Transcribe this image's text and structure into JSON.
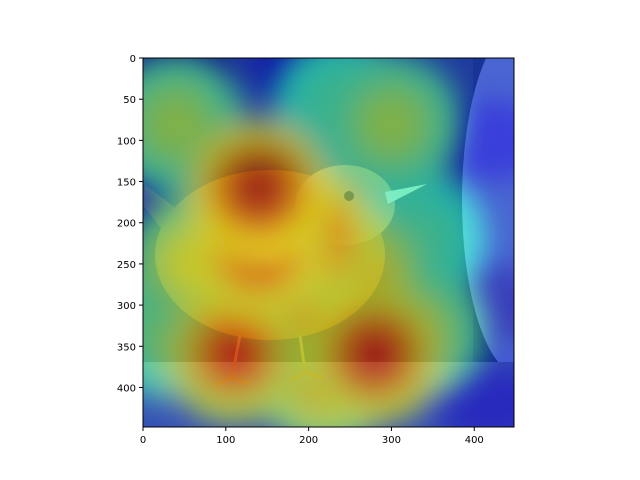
{
  "chart_data": {
    "type": "heatmap",
    "title": "",
    "xlabel": "",
    "ylabel": "",
    "x_range": [
      0,
      448
    ],
    "y_range": [
      448,
      0
    ],
    "x_ticks": [
      0,
      100,
      200,
      300,
      400
    ],
    "y_ticks": [
      0,
      50,
      100,
      150,
      200,
      250,
      300,
      350,
      400
    ],
    "x_tick_labels": [
      "0",
      "100",
      "200",
      "300",
      "400"
    ],
    "y_tick_labels": [
      "0",
      "50",
      "100",
      "150",
      "200",
      "250",
      "300",
      "350",
      "400"
    ],
    "colormap": "jet",
    "background": "photo of a small brown wren perched on a wooden ledge",
    "heat_hotspots": [
      {
        "x": 140,
        "y": 160,
        "level": 0.95
      },
      {
        "x": 140,
        "y": 230,
        "level": 0.9
      },
      {
        "x": 200,
        "y": 220,
        "level": 0.85
      },
      {
        "x": 180,
        "y": 290,
        "level": 0.8
      },
      {
        "x": 250,
        "y": 270,
        "level": 0.75
      },
      {
        "x": 280,
        "y": 360,
        "level": 0.9
      },
      {
        "x": 110,
        "y": 360,
        "level": 0.85
      },
      {
        "x": 220,
        "y": 390,
        "level": 0.7
      },
      {
        "x": 40,
        "y": 80,
        "level": 0.55
      },
      {
        "x": 300,
        "y": 80,
        "level": 0.55
      },
      {
        "x": 240,
        "y": 60,
        "level": 0.45
      },
      {
        "x": 60,
        "y": 250,
        "level": 0.6
      },
      {
        "x": 30,
        "y": 330,
        "level": 0.5
      },
      {
        "x": 330,
        "y": 330,
        "level": 0.55
      },
      {
        "x": 330,
        "y": 220,
        "level": 0.45
      }
    ],
    "cold_regions": [
      {
        "x": 40,
        "y": 10,
        "level": 0.05
      },
      {
        "x": 200,
        "y": 10,
        "level": 0.1
      },
      {
        "x": 420,
        "y": 300,
        "level": 0.05
      },
      {
        "x": 420,
        "y": 100,
        "level": 0.1
      },
      {
        "x": 10,
        "y": 170,
        "level": 0.1
      },
      {
        "x": 420,
        "y": 420,
        "level": 0.1
      }
    ]
  }
}
